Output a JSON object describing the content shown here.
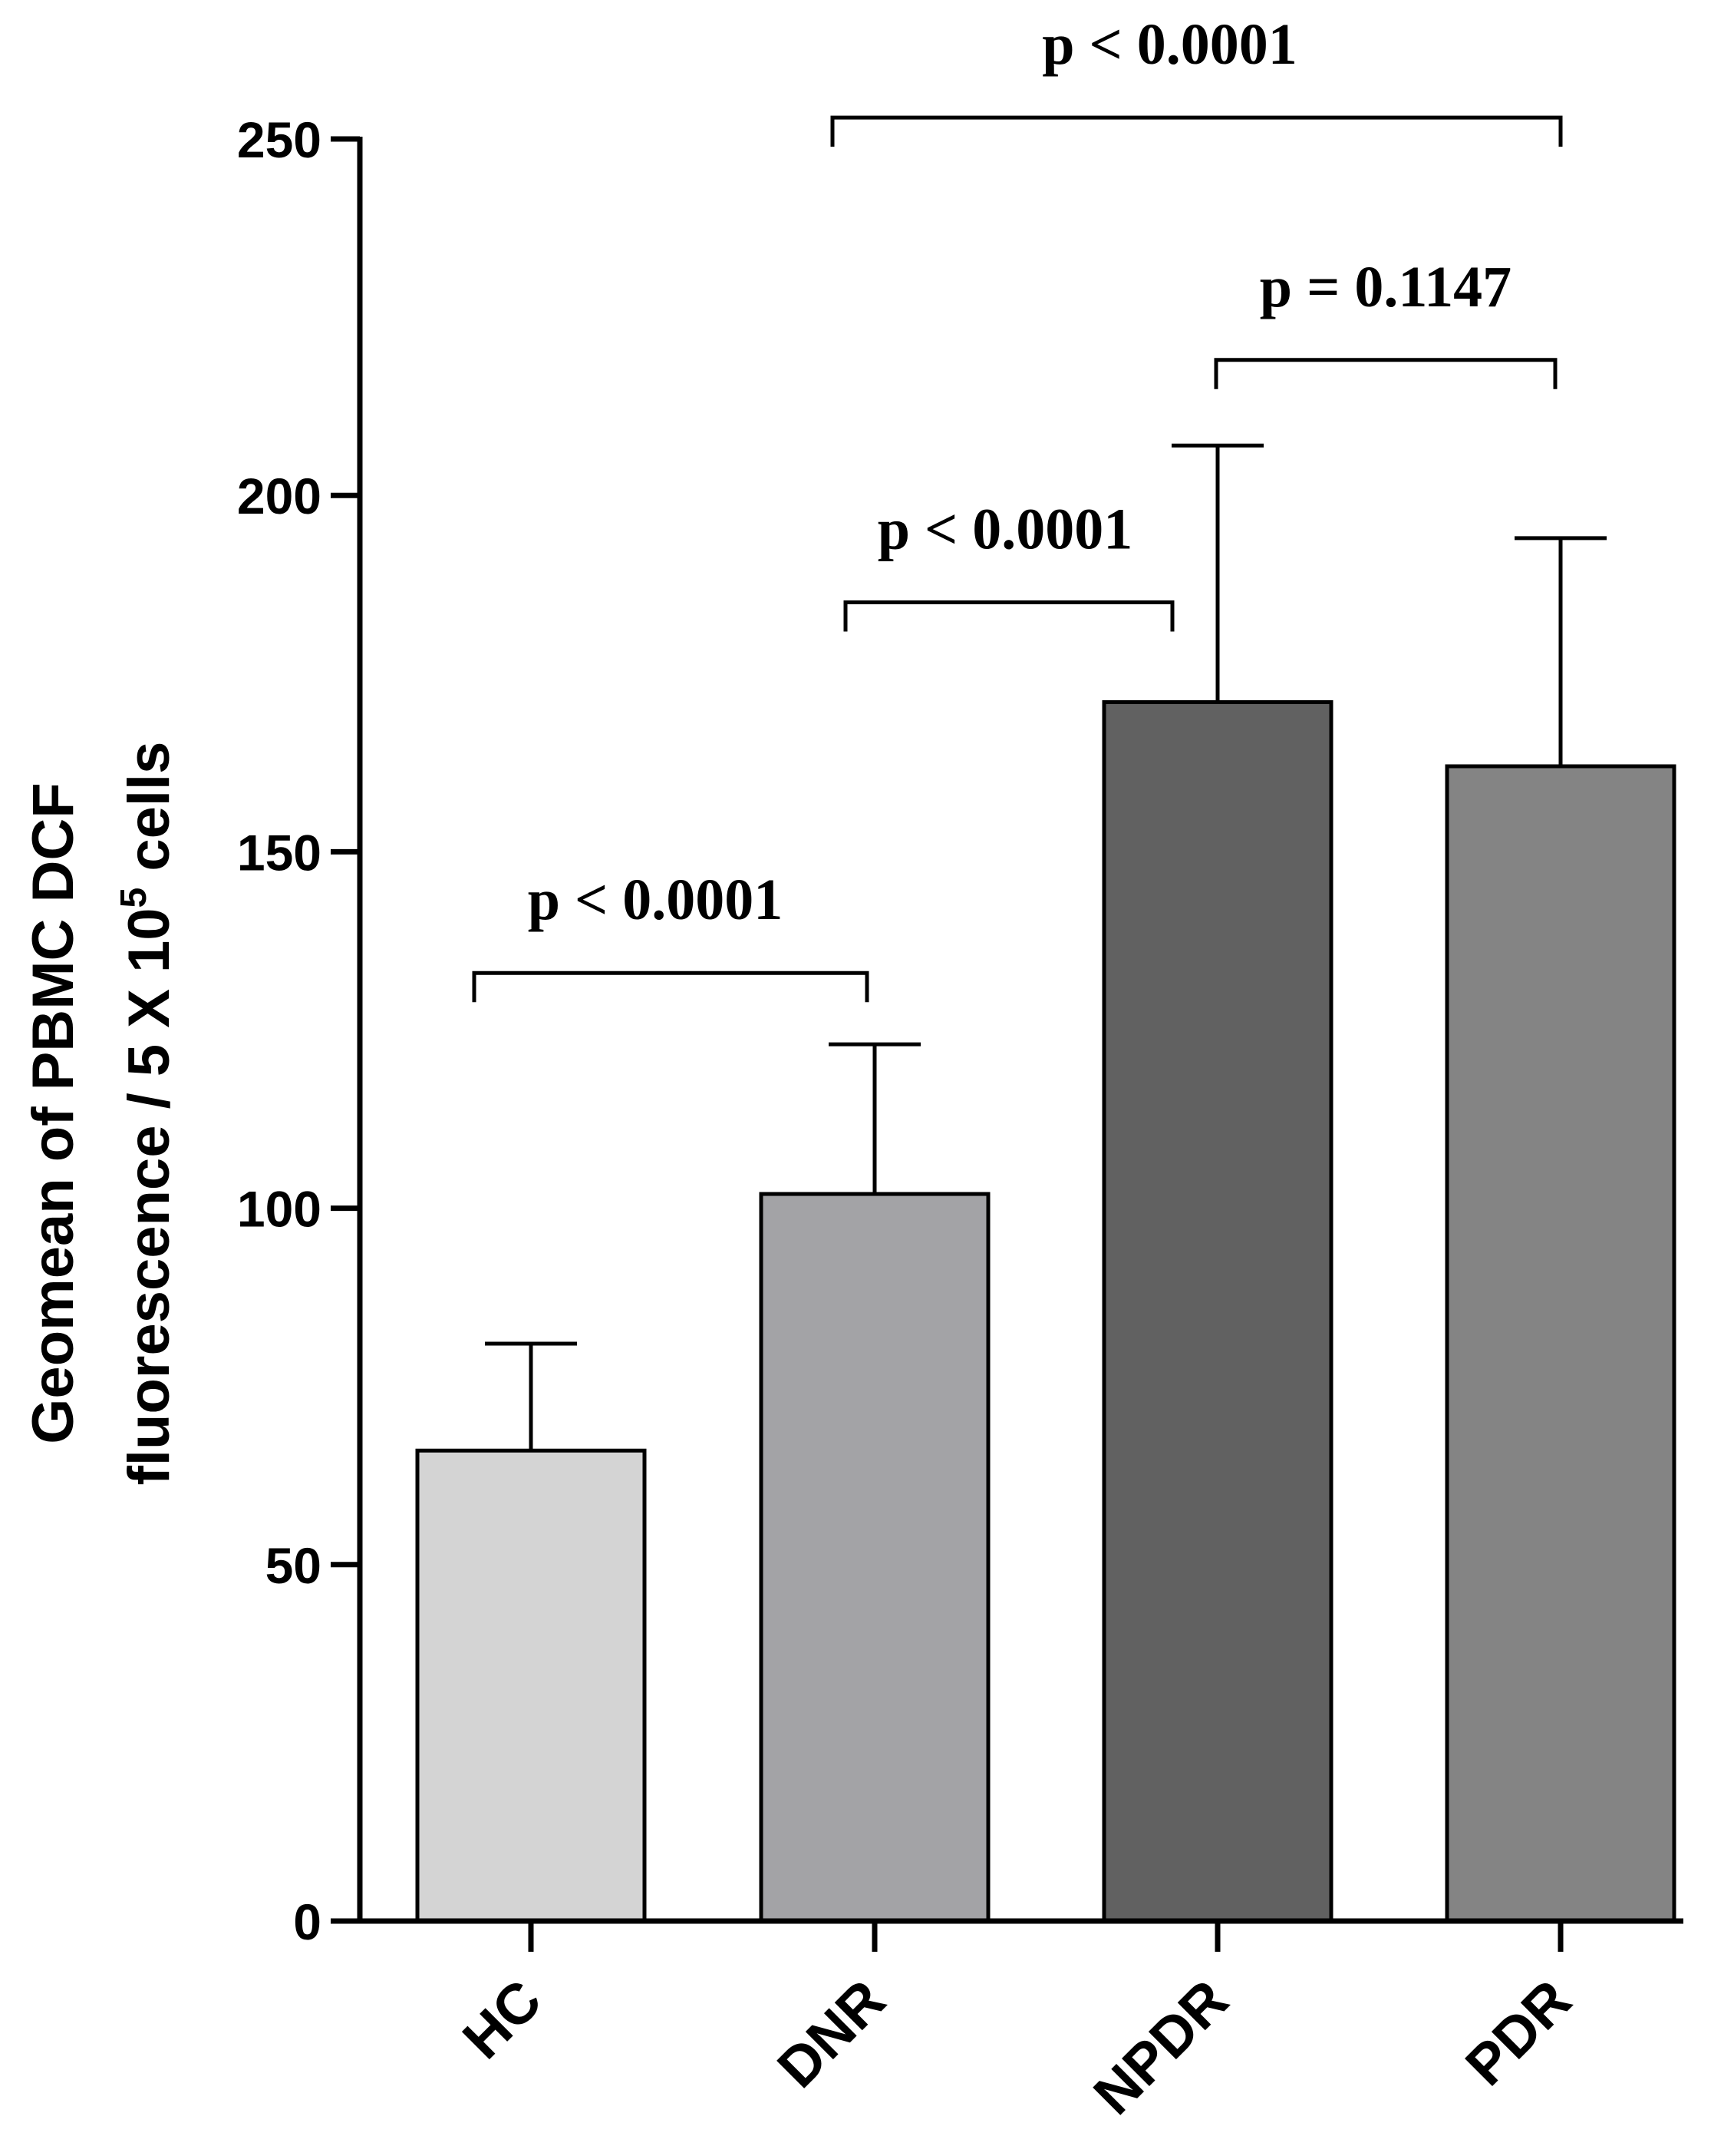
{
  "chart_data": {
    "type": "bar",
    "title": "",
    "xlabel": "",
    "ylabel": {
      "line1": "Geomean of PBMC DCF",
      "line2_prefix": "fluorescence / 5 X 10",
      "line2_superscript": "5",
      "line2_suffix": " cells"
    },
    "ylim": [
      0,
      250
    ],
    "yticks": [
      0,
      50,
      100,
      150,
      200,
      250
    ],
    "ytick_labels": [
      "0",
      "50",
      "100",
      "150",
      "200",
      "250"
    ],
    "categories": [
      "HC",
      "DNR",
      "NPDR",
      "PDR"
    ],
    "values": [
      66,
      102,
      171,
      162
    ],
    "errors": [
      15,
      21,
      36,
      32
    ],
    "bar_colors": [
      "#d4d4d4",
      "#a3a3a6",
      "#616161",
      "#848484"
    ],
    "grid": false,
    "legend": null,
    "comparisons": [
      {
        "from": "HC",
        "to": "DNR",
        "label": "p < 0.0001",
        "level": 133
      },
      {
        "from": "DNR",
        "to": "NPDR",
        "label": "p < 0.0001",
        "level": 185
      },
      {
        "from": "NPDR",
        "to": "PDR",
        "label": "p = 0.1147",
        "level": 219
      },
      {
        "from": "DNR",
        "to": "PDR",
        "label": "p < 0.0001",
        "level": 253
      }
    ]
  }
}
